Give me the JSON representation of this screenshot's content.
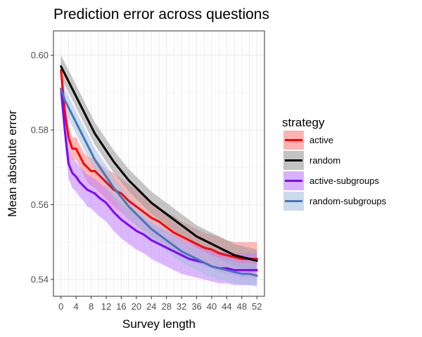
{
  "chart_data": {
    "type": "line",
    "title": "Prediction error across questions",
    "xlabel": "Survey length",
    "ylabel": "Mean absolute error",
    "xlim": [
      -2,
      54
    ],
    "ylim": [
      0.5355,
      0.6065
    ],
    "x_ticks": [
      0,
      4,
      8,
      12,
      16,
      20,
      24,
      28,
      32,
      36,
      40,
      44,
      48,
      52
    ],
    "y_ticks": [
      0.54,
      0.56,
      0.58,
      0.6
    ],
    "y_tick_labels": [
      "0.54",
      "0.56",
      "0.58",
      "0.60"
    ],
    "grid": true,
    "legend": {
      "title": "strategy",
      "placement": "right"
    },
    "x": [
      0,
      1,
      2,
      3,
      4,
      5,
      6,
      7,
      8,
      9,
      10,
      12,
      14,
      16,
      18,
      20,
      22,
      24,
      26,
      28,
      30,
      32,
      34,
      36,
      38,
      40,
      42,
      44,
      46,
      48,
      50,
      52
    ],
    "series": [
      {
        "name": "active",
        "color": "#ff0000",
        "band_color": "#ff7f7f",
        "values": [
          0.596,
          0.585,
          0.578,
          0.575,
          0.575,
          0.573,
          0.571,
          0.57,
          0.569,
          0.569,
          0.568,
          0.566,
          0.564,
          0.563,
          0.561,
          0.5595,
          0.558,
          0.5565,
          0.5555,
          0.554,
          0.5525,
          0.5515,
          0.5505,
          0.5495,
          0.5485,
          0.548,
          0.547,
          0.5465,
          0.546,
          0.5455,
          0.5455,
          0.5455
        ],
        "lower": [
          0.593,
          0.582,
          0.575,
          0.572,
          0.572,
          0.57,
          0.568,
          0.566,
          0.565,
          0.5645,
          0.5635,
          0.5615,
          0.5595,
          0.558,
          0.556,
          0.5545,
          0.553,
          0.5515,
          0.55,
          0.5485,
          0.5475,
          0.5465,
          0.5455,
          0.5445,
          0.5435,
          0.543,
          0.542,
          0.5415,
          0.541,
          0.5405,
          0.5405,
          0.5405
        ],
        "upper": [
          0.6,
          0.588,
          0.581,
          0.578,
          0.578,
          0.576,
          0.574,
          0.573,
          0.5725,
          0.5725,
          0.5715,
          0.5695,
          0.5685,
          0.567,
          0.5655,
          0.564,
          0.5625,
          0.561,
          0.5595,
          0.558,
          0.557,
          0.5555,
          0.5545,
          0.5535,
          0.5525,
          0.552,
          0.5515,
          0.5505,
          0.55,
          0.55,
          0.55,
          0.55
        ]
      },
      {
        "name": "random",
        "color": "#000000",
        "band_color": "#999999",
        "values": [
          0.597,
          0.595,
          0.593,
          0.591,
          0.589,
          0.587,
          0.585,
          0.583,
          0.581,
          0.579,
          0.5775,
          0.5745,
          0.5715,
          0.569,
          0.5665,
          0.5645,
          0.5625,
          0.5605,
          0.559,
          0.5575,
          0.556,
          0.5545,
          0.553,
          0.5515,
          0.5505,
          0.5495,
          0.5485,
          0.5475,
          0.5465,
          0.546,
          0.5455,
          0.545
        ],
        "lower": [
          0.594,
          0.592,
          0.59,
          0.588,
          0.586,
          0.584,
          0.582,
          0.58,
          0.578,
          0.576,
          0.5745,
          0.5715,
          0.5685,
          0.566,
          0.5635,
          0.5615,
          0.5595,
          0.5575,
          0.556,
          0.5545,
          0.553,
          0.5515,
          0.55,
          0.5485,
          0.5475,
          0.5465,
          0.5455,
          0.5445,
          0.5435,
          0.543,
          0.5425,
          0.542
        ],
        "upper": [
          0.6,
          0.598,
          0.596,
          0.594,
          0.592,
          0.59,
          0.588,
          0.586,
          0.584,
          0.582,
          0.5805,
          0.5775,
          0.5745,
          0.572,
          0.5695,
          0.5675,
          0.5655,
          0.5635,
          0.562,
          0.5605,
          0.559,
          0.5575,
          0.556,
          0.5545,
          0.5535,
          0.5525,
          0.5515,
          0.5505,
          0.5495,
          0.549,
          0.5485,
          0.548
        ]
      },
      {
        "name": "active-subgroups",
        "color": "#7f00ff",
        "band_color": "#bf7fff",
        "values": [
          0.591,
          0.58,
          0.571,
          0.5685,
          0.5675,
          0.566,
          0.565,
          0.564,
          0.5635,
          0.563,
          0.562,
          0.5605,
          0.558,
          0.556,
          0.5545,
          0.553,
          0.552,
          0.5505,
          0.5495,
          0.5485,
          0.5475,
          0.5465,
          0.5455,
          0.545,
          0.5445,
          0.5435,
          0.543,
          0.543,
          0.5425,
          0.5425,
          0.5425,
          0.5425
        ],
        "lower": [
          0.588,
          0.577,
          0.567,
          0.5645,
          0.5635,
          0.562,
          0.561,
          0.5595,
          0.559,
          0.558,
          0.557,
          0.5555,
          0.553,
          0.551,
          0.5495,
          0.548,
          0.547,
          0.5455,
          0.5445,
          0.5435,
          0.5425,
          0.5415,
          0.541,
          0.5405,
          0.54,
          0.5395,
          0.539,
          0.539,
          0.5385,
          0.5385,
          0.5385,
          0.5385
        ],
        "upper": [
          0.594,
          0.583,
          0.575,
          0.5725,
          0.5715,
          0.57,
          0.569,
          0.568,
          0.5675,
          0.567,
          0.566,
          0.5645,
          0.5625,
          0.5605,
          0.559,
          0.5575,
          0.5565,
          0.555,
          0.554,
          0.553,
          0.552,
          0.551,
          0.55,
          0.5495,
          0.549,
          0.548,
          0.5475,
          0.5475,
          0.547,
          0.547,
          0.547,
          0.547
        ]
      },
      {
        "name": "random-subgroups",
        "color": "#4477bb",
        "band_color": "#a8c0dd",
        "values": [
          0.591,
          0.588,
          0.586,
          0.584,
          0.582,
          0.58,
          0.578,
          0.576,
          0.574,
          0.572,
          0.5705,
          0.5675,
          0.5645,
          0.562,
          0.5595,
          0.5575,
          0.5555,
          0.5535,
          0.552,
          0.5505,
          0.549,
          0.5475,
          0.5465,
          0.5455,
          0.5445,
          0.5435,
          0.543,
          0.5425,
          0.542,
          0.5415,
          0.5415,
          0.541
        ],
        "lower": [
          0.588,
          0.585,
          0.583,
          0.581,
          0.579,
          0.577,
          0.575,
          0.573,
          0.571,
          0.569,
          0.5675,
          0.5645,
          0.5615,
          0.559,
          0.5565,
          0.5545,
          0.5525,
          0.5505,
          0.549,
          0.5475,
          0.546,
          0.5445,
          0.5435,
          0.5425,
          0.5415,
          0.5405,
          0.54,
          0.5395,
          0.539,
          0.5385,
          0.5385,
          0.538
        ],
        "upper": [
          0.594,
          0.591,
          0.589,
          0.587,
          0.585,
          0.583,
          0.581,
          0.579,
          0.577,
          0.575,
          0.5735,
          0.5705,
          0.5675,
          0.565,
          0.5625,
          0.5605,
          0.5585,
          0.5565,
          0.555,
          0.5535,
          0.552,
          0.5505,
          0.5495,
          0.5485,
          0.5475,
          0.5465,
          0.546,
          0.5455,
          0.545,
          0.5445,
          0.5445,
          0.544
        ]
      }
    ]
  }
}
